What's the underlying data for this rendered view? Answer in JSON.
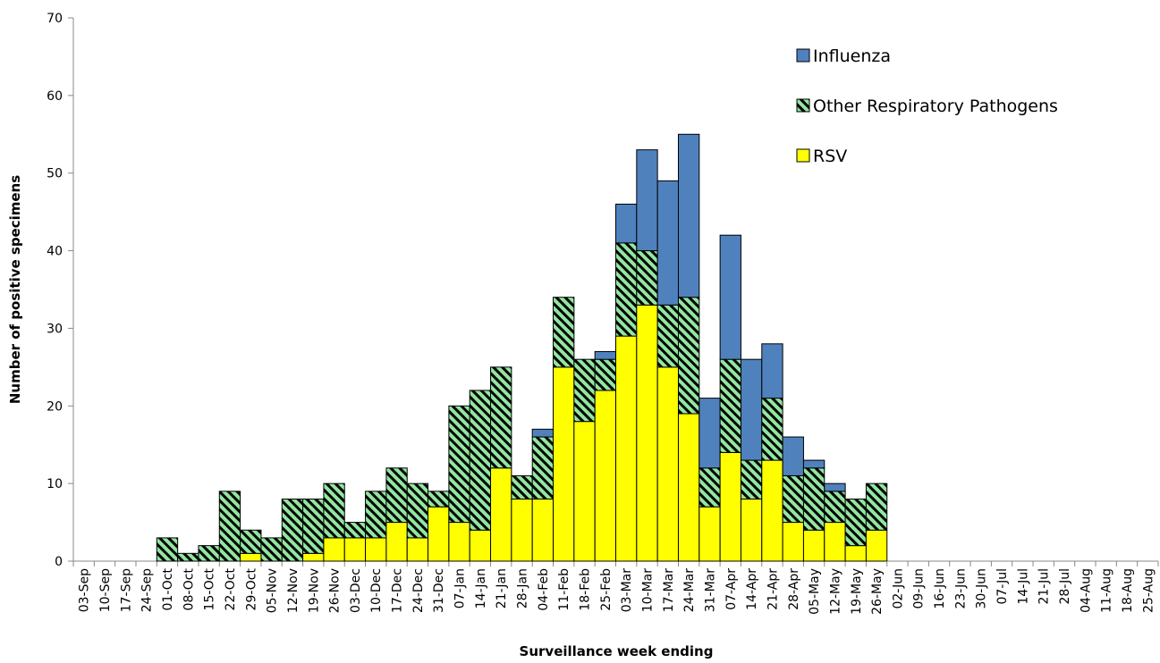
{
  "chart_data": {
    "type": "stacked_bar",
    "x_label": "Surveillance week ending",
    "y_label": "Number of positive specimens",
    "categories": [
      "03-Sep",
      "10-Sep",
      "17-Sep",
      "24-Sep",
      "01-Oct",
      "08-Oct",
      "15-Oct",
      "22-Oct",
      "29-Oct",
      "05-Nov",
      "12-Nov",
      "19-Nov",
      "26-Nov",
      "03-Dec",
      "10-Dec",
      "17-Dec",
      "24-Dec",
      "31-Dec",
      "07-Jan",
      "14-Jan",
      "21-Jan",
      "28-Jan",
      "04-Feb",
      "11-Feb",
      "18-Feb",
      "25-Feb",
      "03-Mar",
      "10-Mar",
      "17-Mar",
      "24-Mar",
      "31-Mar",
      "07-Apr",
      "14-Apr",
      "21-Apr",
      "28-Apr",
      "05-May",
      "12-May",
      "19-May",
      "26-May",
      "02-Jun",
      "09-Jun",
      "16-Jun",
      "23-Jun",
      "30-Jun",
      "07-Jul",
      "14-Jul",
      "21-Jul",
      "28-Jul",
      "04-Aug",
      "11-Aug",
      "18-Aug",
      "25-Aug"
    ],
    "series": [
      {
        "name": "Influenza",
        "color": "#4f81bd",
        "values": [
          0,
          0,
          0,
          0,
          0,
          0,
          0,
          0,
          0,
          0,
          0,
          0,
          0,
          0,
          0,
          0,
          0,
          0,
          0,
          0,
          0,
          0,
          1,
          0,
          0,
          1,
          5,
          13,
          16,
          21,
          9,
          16,
          13,
          7,
          5,
          1,
          1,
          0,
          0,
          0,
          0,
          0,
          0,
          0,
          0,
          0,
          0,
          0,
          0,
          0,
          0,
          0
        ]
      },
      {
        "name": "Other Respiratory Pathogens",
        "color": "#92e6a0",
        "hatch": true,
        "values": [
          0,
          0,
          0,
          0,
          3,
          1,
          2,
          9,
          3,
          3,
          8,
          7,
          7,
          2,
          6,
          7,
          7,
          2,
          15,
          18,
          13,
          3,
          8,
          9,
          8,
          4,
          12,
          7,
          8,
          15,
          5,
          12,
          5,
          8,
          6,
          8,
          4,
          6,
          6,
          0,
          0,
          0,
          0,
          0,
          0,
          0,
          0,
          0,
          0,
          0,
          0,
          0
        ]
      },
      {
        "name": "RSV",
        "color": "#ffff00",
        "values": [
          0,
          0,
          0,
          0,
          0,
          0,
          0,
          0,
          1,
          0,
          0,
          1,
          3,
          3,
          3,
          5,
          3,
          7,
          5,
          4,
          12,
          8,
          8,
          25,
          18,
          22,
          29,
          33,
          25,
          19,
          7,
          14,
          8,
          13,
          5,
          4,
          5,
          2,
          4,
          0,
          0,
          0,
          0,
          0,
          0,
          0,
          0,
          0,
          0,
          0,
          0,
          0
        ]
      }
    ],
    "ylim": [
      0,
      70
    ],
    "yticks": [
      0,
      10,
      20,
      30,
      40,
      50,
      60,
      70
    ],
    "grid": false,
    "legend": "top-right"
  }
}
